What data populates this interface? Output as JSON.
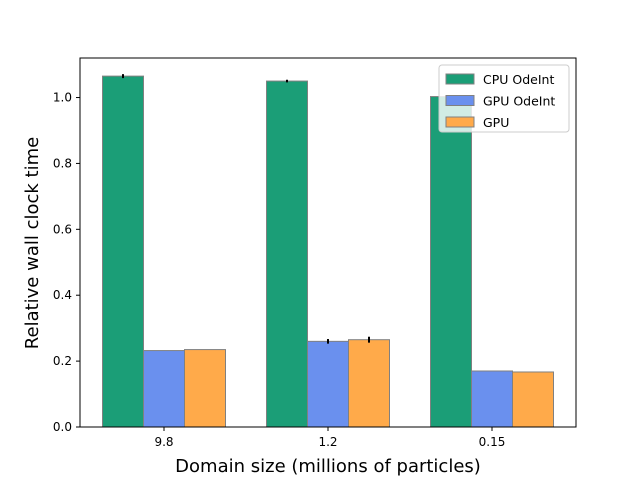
{
  "chart_data": {
    "type": "bar",
    "title": "",
    "xlabel": "Domain size (millions of particles)",
    "ylabel": "Relative wall clock time",
    "categories": [
      "9.8",
      "1.2",
      "0.15"
    ],
    "ylim": [
      0,
      1.12
    ],
    "yticks": [
      0.0,
      0.2,
      0.4,
      0.6,
      0.8,
      1.0
    ],
    "ytick_labels": [
      "0.0",
      "0.2",
      "0.4",
      "0.6",
      "0.8",
      "1.0"
    ],
    "grid": false,
    "legend_position": "top-right",
    "series": [
      {
        "name": "CPU OdeInt",
        "color": "#1b9e77",
        "values": [
          1.065,
          1.05,
          1.003
        ],
        "errors": [
          0.006,
          0.004,
          0.0
        ]
      },
      {
        "name": "GPU OdeInt",
        "color": "#6a90ee",
        "values": [
          0.232,
          0.26,
          0.17
        ],
        "errors": [
          0.0,
          0.007,
          0.0
        ]
      },
      {
        "name": "GPU",
        "color": "#ffaa4a",
        "values": [
          0.235,
          0.265,
          0.167
        ],
        "errors": [
          0.0,
          0.009,
          0.0
        ]
      }
    ]
  }
}
